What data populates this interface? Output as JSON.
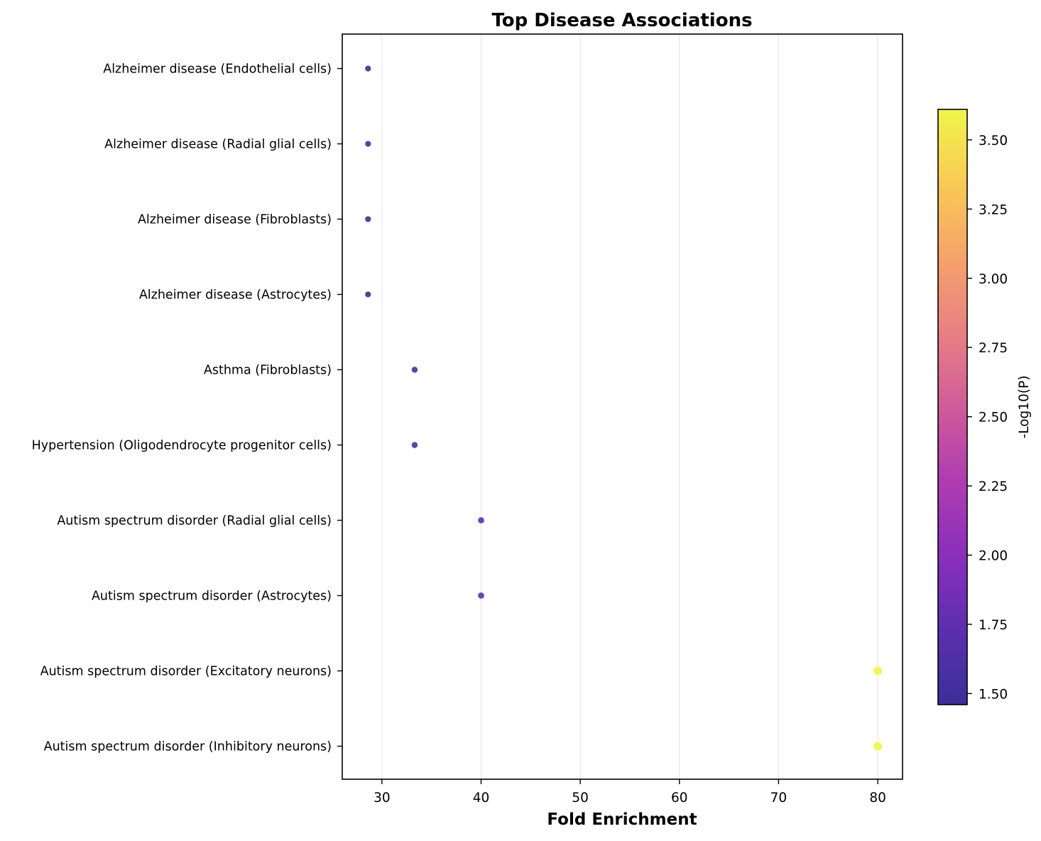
{
  "chart_data": {
    "type": "scatter",
    "title": "Top Disease Associations",
    "xlabel": "Fold Enrichment",
    "ylabel": "",
    "xlim": [
      26,
      82.5
    ],
    "xticks": [
      30,
      40,
      50,
      60,
      70,
      80
    ],
    "grid": "vertical",
    "categories": [
      "Alzheimer disease (Endothelial cells)",
      "Alzheimer disease (Radial glial cells)",
      "Alzheimer disease (Fibroblasts)",
      "Alzheimer disease (Astrocytes)",
      "Asthma (Fibroblasts)",
      "Hypertension (Oligodendrocyte progenitor cells)",
      "Autism spectrum disorder (Radial glial cells)",
      "Autism spectrum disorder (Astrocytes)",
      "Autism spectrum disorder (Excitatory neurons)",
      "Autism spectrum disorder (Inhibitory neurons)"
    ],
    "points": [
      {
        "category": "Alzheimer disease (Endothelial cells)",
        "x": 28.6,
        "neg_log10_p": 1.46
      },
      {
        "category": "Alzheimer disease (Radial glial cells)",
        "x": 28.6,
        "neg_log10_p": 1.46
      },
      {
        "category": "Alzheimer disease (Fibroblasts)",
        "x": 28.6,
        "neg_log10_p": 1.46
      },
      {
        "category": "Alzheimer disease (Astrocytes)",
        "x": 28.6,
        "neg_log10_p": 1.46
      },
      {
        "category": "Asthma (Fibroblasts)",
        "x": 33.3,
        "neg_log10_p": 1.55
      },
      {
        "category": "Hypertension (Oligodendrocyte progenitor cells)",
        "x": 33.3,
        "neg_log10_p": 1.55
      },
      {
        "category": "Autism spectrum disorder (Radial glial cells)",
        "x": 40.0,
        "neg_log10_p": 1.73
      },
      {
        "category": "Autism spectrum disorder (Astrocytes)",
        "x": 40.0,
        "neg_log10_p": 1.73
      },
      {
        "category": "Autism spectrum disorder (Excitatory neurons)",
        "x": 80.0,
        "neg_log10_p": 3.61
      },
      {
        "category": "Autism spectrum disorder (Inhibitory neurons)",
        "x": 80.0,
        "neg_log10_p": 3.61
      }
    ],
    "colorbar": {
      "label": "-Log10(P)",
      "range": [
        1.46,
        3.61
      ],
      "ticks": [
        "1.50",
        "1.75",
        "2.00",
        "2.25",
        "2.50",
        "2.75",
        "3.00",
        "3.25",
        "3.50"
      ],
      "colormap": "plasma",
      "placement": "right"
    },
    "colors": {
      "grid": "#e6e6e6",
      "axis": "#000000"
    }
  }
}
